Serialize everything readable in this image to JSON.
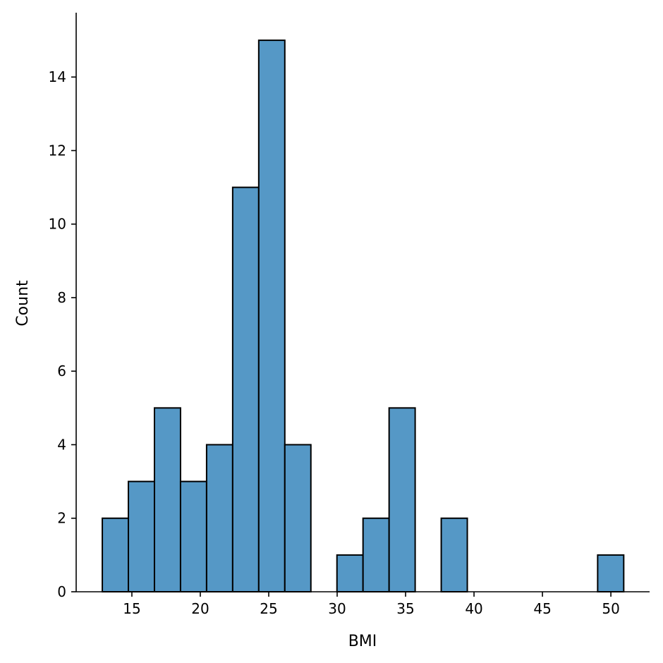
{
  "chart_data": {
    "type": "bar",
    "subtype": "histogram",
    "title": "",
    "xlabel": "BMI",
    "ylabel": "Count",
    "bin_start": 12.84,
    "bin_width": 1.905,
    "values": [
      2,
      3,
      5,
      3,
      4,
      11,
      15,
      4,
      0,
      1,
      2,
      5,
      0,
      2,
      0,
      0,
      0,
      0,
      0,
      1
    ],
    "xlim": [
      10.93,
      52.83
    ],
    "ylim": [
      0,
      15.75
    ],
    "xticks": [
      15,
      20,
      25,
      30,
      35,
      40,
      45,
      50
    ],
    "yticks": [
      0,
      2,
      4,
      6,
      8,
      10,
      12,
      14
    ],
    "bar_color": "#5598c6",
    "edge_color": "#000000",
    "grid": false
  }
}
